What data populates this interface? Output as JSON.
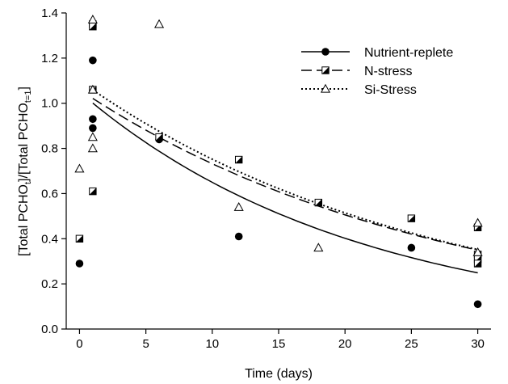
{
  "chart_data": {
    "type": "scatter",
    "xlabel": "Time (days)",
    "ylabel": {
      "a": "[Total PCHO",
      "sub1": "t",
      "b": "]/[Total PCHO",
      "sub2": "t=1",
      "c": "]"
    },
    "xlim": [
      -1,
      31
    ],
    "ylim": [
      0,
      1.4
    ],
    "x_ticks": [
      0,
      5,
      10,
      15,
      20,
      25,
      30
    ],
    "y_ticks": [
      0.0,
      0.2,
      0.4,
      0.6,
      0.8,
      1.0,
      1.2,
      1.4
    ],
    "x_tick_labels": [
      "0",
      "5",
      "10",
      "15",
      "20",
      "25",
      "30"
    ],
    "y_tick_labels": [
      "0.0",
      "0.2",
      "0.4",
      "0.6",
      "0.8",
      "1.0",
      "1.2",
      "1.4"
    ],
    "grid": false,
    "legend_position": "top-right",
    "series": [
      {
        "name": "Nutrient-replete",
        "marker": "filled-circle",
        "line_style": "solid",
        "points": [
          [
            0,
            0.29
          ],
          [
            1,
            1.19
          ],
          [
            1,
            0.93
          ],
          [
            1,
            0.89
          ],
          [
            6,
            0.84
          ],
          [
            12,
            0.41
          ],
          [
            25,
            0.36
          ],
          [
            30,
            0.11
          ]
        ],
        "fit": {
          "a": 1.05,
          "k": 0.048,
          "x_range": [
            1,
            30
          ]
        }
      },
      {
        "name": "N-stress",
        "marker": "half-filled-square",
        "line_style": "dashed",
        "points": [
          [
            0,
            0.4
          ],
          [
            1,
            1.35
          ],
          [
            1,
            1.34
          ],
          [
            1,
            1.06
          ],
          [
            1,
            0.61
          ],
          [
            6,
            0.85
          ],
          [
            12,
            0.75
          ],
          [
            18,
            0.56
          ],
          [
            25,
            0.49
          ],
          [
            30,
            0.45
          ],
          [
            30,
            0.33
          ],
          [
            30,
            0.31
          ],
          [
            30,
            0.29
          ]
        ],
        "fit": {
          "a": 1.06,
          "k": 0.037,
          "x_range": [
            1,
            30
          ]
        }
      },
      {
        "name": "Si-Stress",
        "marker": "open-triangle",
        "line_style": "dotted",
        "points": [
          [
            0,
            0.71
          ],
          [
            1,
            1.37
          ],
          [
            1,
            1.06
          ],
          [
            1,
            0.85
          ],
          [
            1,
            0.8
          ],
          [
            6,
            1.35
          ],
          [
            12,
            0.54
          ],
          [
            18,
            0.36
          ],
          [
            30,
            0.47
          ],
          [
            30,
            0.34
          ]
        ],
        "fit": {
          "a": 1.1,
          "k": 0.038,
          "x_range": [
            1,
            30
          ]
        }
      }
    ]
  }
}
